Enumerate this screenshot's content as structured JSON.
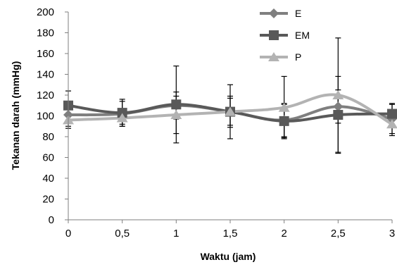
{
  "chart_data": {
    "type": "line",
    "xlabel": "Waktu (jam)",
    "ylabel": "Tekanan darah (mmHg)",
    "ylim": [
      0,
      200
    ],
    "y_ticks": [
      "0",
      "20",
      "40",
      "60",
      "80",
      "100",
      "120",
      "140",
      "160",
      "180",
      "200"
    ],
    "x": [
      0,
      0.5,
      1,
      1.5,
      2,
      2.5,
      3
    ],
    "x_tick_labels": [
      "0",
      "0,5",
      "1",
      "1,5",
      "2",
      "2,5",
      "3"
    ],
    "grid": false,
    "legend_position": "top-right",
    "smooth": true,
    "series": [
      {
        "name": "E",
        "marker": "diamond",
        "color": "#7f7f7f",
        "values": [
          101,
          102,
          110,
          104,
          96,
          109,
          97
        ],
        "error": [
          13,
          12,
          13,
          13,
          16,
          16,
          14
        ]
      },
      {
        "name": "EM",
        "marker": "square",
        "color": "#595959",
        "values": [
          110,
          103,
          111,
          104,
          95,
          101,
          102
        ],
        "error": [
          14,
          13,
          37,
          15,
          16,
          37,
          10
        ]
      },
      {
        "name": "P",
        "marker": "triangle",
        "color": "#b3b3b3",
        "values": [
          96,
          98,
          101,
          104,
          108,
          120,
          92
        ],
        "error": [
          6,
          6,
          18,
          26,
          30,
          55,
          11
        ]
      }
    ]
  }
}
